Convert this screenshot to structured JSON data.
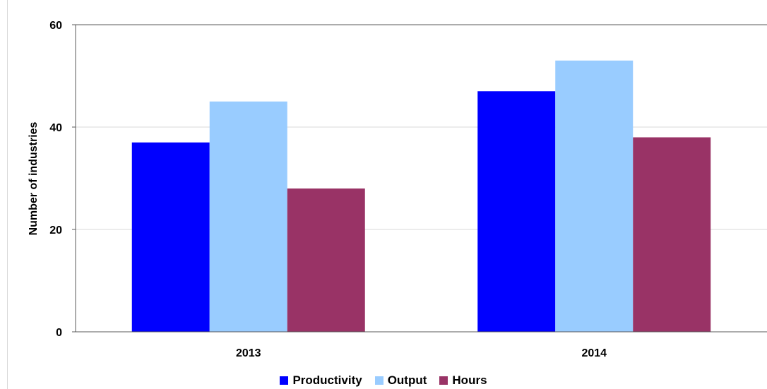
{
  "chart_data": {
    "type": "bar",
    "categories": [
      "2013",
      "2014"
    ],
    "series": [
      {
        "name": "Productivity",
        "values": [
          37,
          47
        ],
        "color": "#0000ff"
      },
      {
        "name": "Output",
        "values": [
          45,
          53
        ],
        "color": "#99ccff"
      },
      {
        "name": "Hours",
        "values": [
          28,
          38
        ],
        "color": "#993366"
      }
    ],
    "title": "",
    "xlabel": "",
    "ylabel": "Number of industries",
    "ylim": [
      0,
      60
    ],
    "yticks": [
      0,
      20,
      40,
      60
    ],
    "grid": true,
    "legend_position": "bottom"
  }
}
